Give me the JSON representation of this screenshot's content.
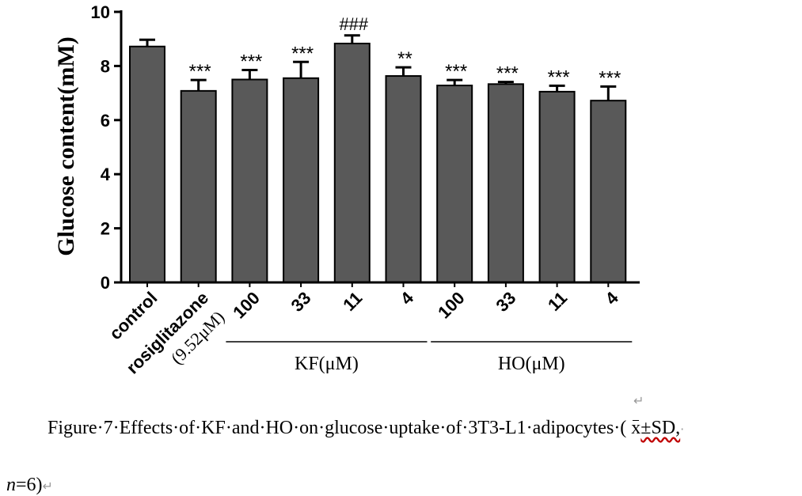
{
  "chart_data": {
    "type": "bar",
    "ylabel": "Glucose content(mM)",
    "ylim": [
      0,
      10
    ],
    "yticks": [
      "0",
      "2",
      "4",
      "6",
      "8",
      "10"
    ],
    "categories": [
      "control",
      "rosiglitazone",
      "100",
      "33",
      "11",
      "4",
      "100",
      "33",
      "11",
      "4"
    ],
    "category_sublabels": [
      "",
      "(9.52μM)",
      "",
      "",
      "",
      "",
      "",
      "",
      "",
      ""
    ],
    "values": [
      8.72,
      7.08,
      7.5,
      7.55,
      8.83,
      7.63,
      7.28,
      7.33,
      7.05,
      6.72
    ],
    "errors": [
      0.25,
      0.4,
      0.35,
      0.6,
      0.3,
      0.32,
      0.2,
      0.08,
      0.22,
      0.52
    ],
    "annotations": [
      "",
      "***",
      "***",
      "***",
      "###",
      "**",
      "***",
      "***",
      "***",
      "***"
    ],
    "groups": [
      {
        "label": "KF(μM)",
        "categories": [
          "100",
          "33",
          "11",
          "4"
        ]
      },
      {
        "label": "HO(μM)",
        "categories": [
          "100",
          "33",
          "11",
          "4"
        ]
      }
    ],
    "bar_color": "#595959",
    "grid": false
  },
  "caption": {
    "line1_prefix": "Figure·7·Effects·of·KF·and·HO·on·glucose·uptake·of·3T3-L1·adipocytes·(  ",
    "xbar": "x",
    "line1_suffix": "±SD,",
    "line1_end_mark": "·",
    "line2_italic": "n",
    "line2_rest": "=6)",
    "return_mark": "↵"
  }
}
